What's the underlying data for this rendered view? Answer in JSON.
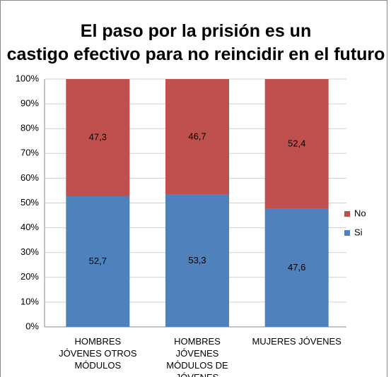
{
  "chart_data": {
    "type": "stacked_bar",
    "title": "El paso por la prisión es un castigo efectivo para no reincidir en el futuro",
    "categories": [
      "HOMBRES JÓVENES OTROS MÓDULOS",
      "HOMBRES JÓVENES MÓDULOS DE JÓVENES",
      "MUJERES JÓVENES"
    ],
    "series": [
      {
        "name": "Si",
        "color": "#4f81bd",
        "values": [
          52.7,
          53.3,
          47.6
        ],
        "value_labels": [
          "52,7",
          "53,3",
          "47,6"
        ]
      },
      {
        "name": "No",
        "color": "#c0504d",
        "values": [
          47.3,
          46.7,
          52.4
        ],
        "value_labels": [
          "47,3",
          "46,7",
          "52,4"
        ]
      }
    ],
    "ylim": [
      0,
      100
    ],
    "yticks": [
      {
        "value": 0,
        "label": "0%"
      },
      {
        "value": 10,
        "label": "10%"
      },
      {
        "value": 20,
        "label": "20%"
      },
      {
        "value": 30,
        "label": "30%"
      },
      {
        "value": 40,
        "label": "40%"
      },
      {
        "value": 50,
        "label": "50%"
      },
      {
        "value": 60,
        "label": "60%"
      },
      {
        "value": 70,
        "label": "70%"
      },
      {
        "value": 80,
        "label": "80%"
      },
      {
        "value": 90,
        "label": "90%"
      },
      {
        "value": 100,
        "label": "100%"
      }
    ],
    "grid": true,
    "legend": "right"
  }
}
